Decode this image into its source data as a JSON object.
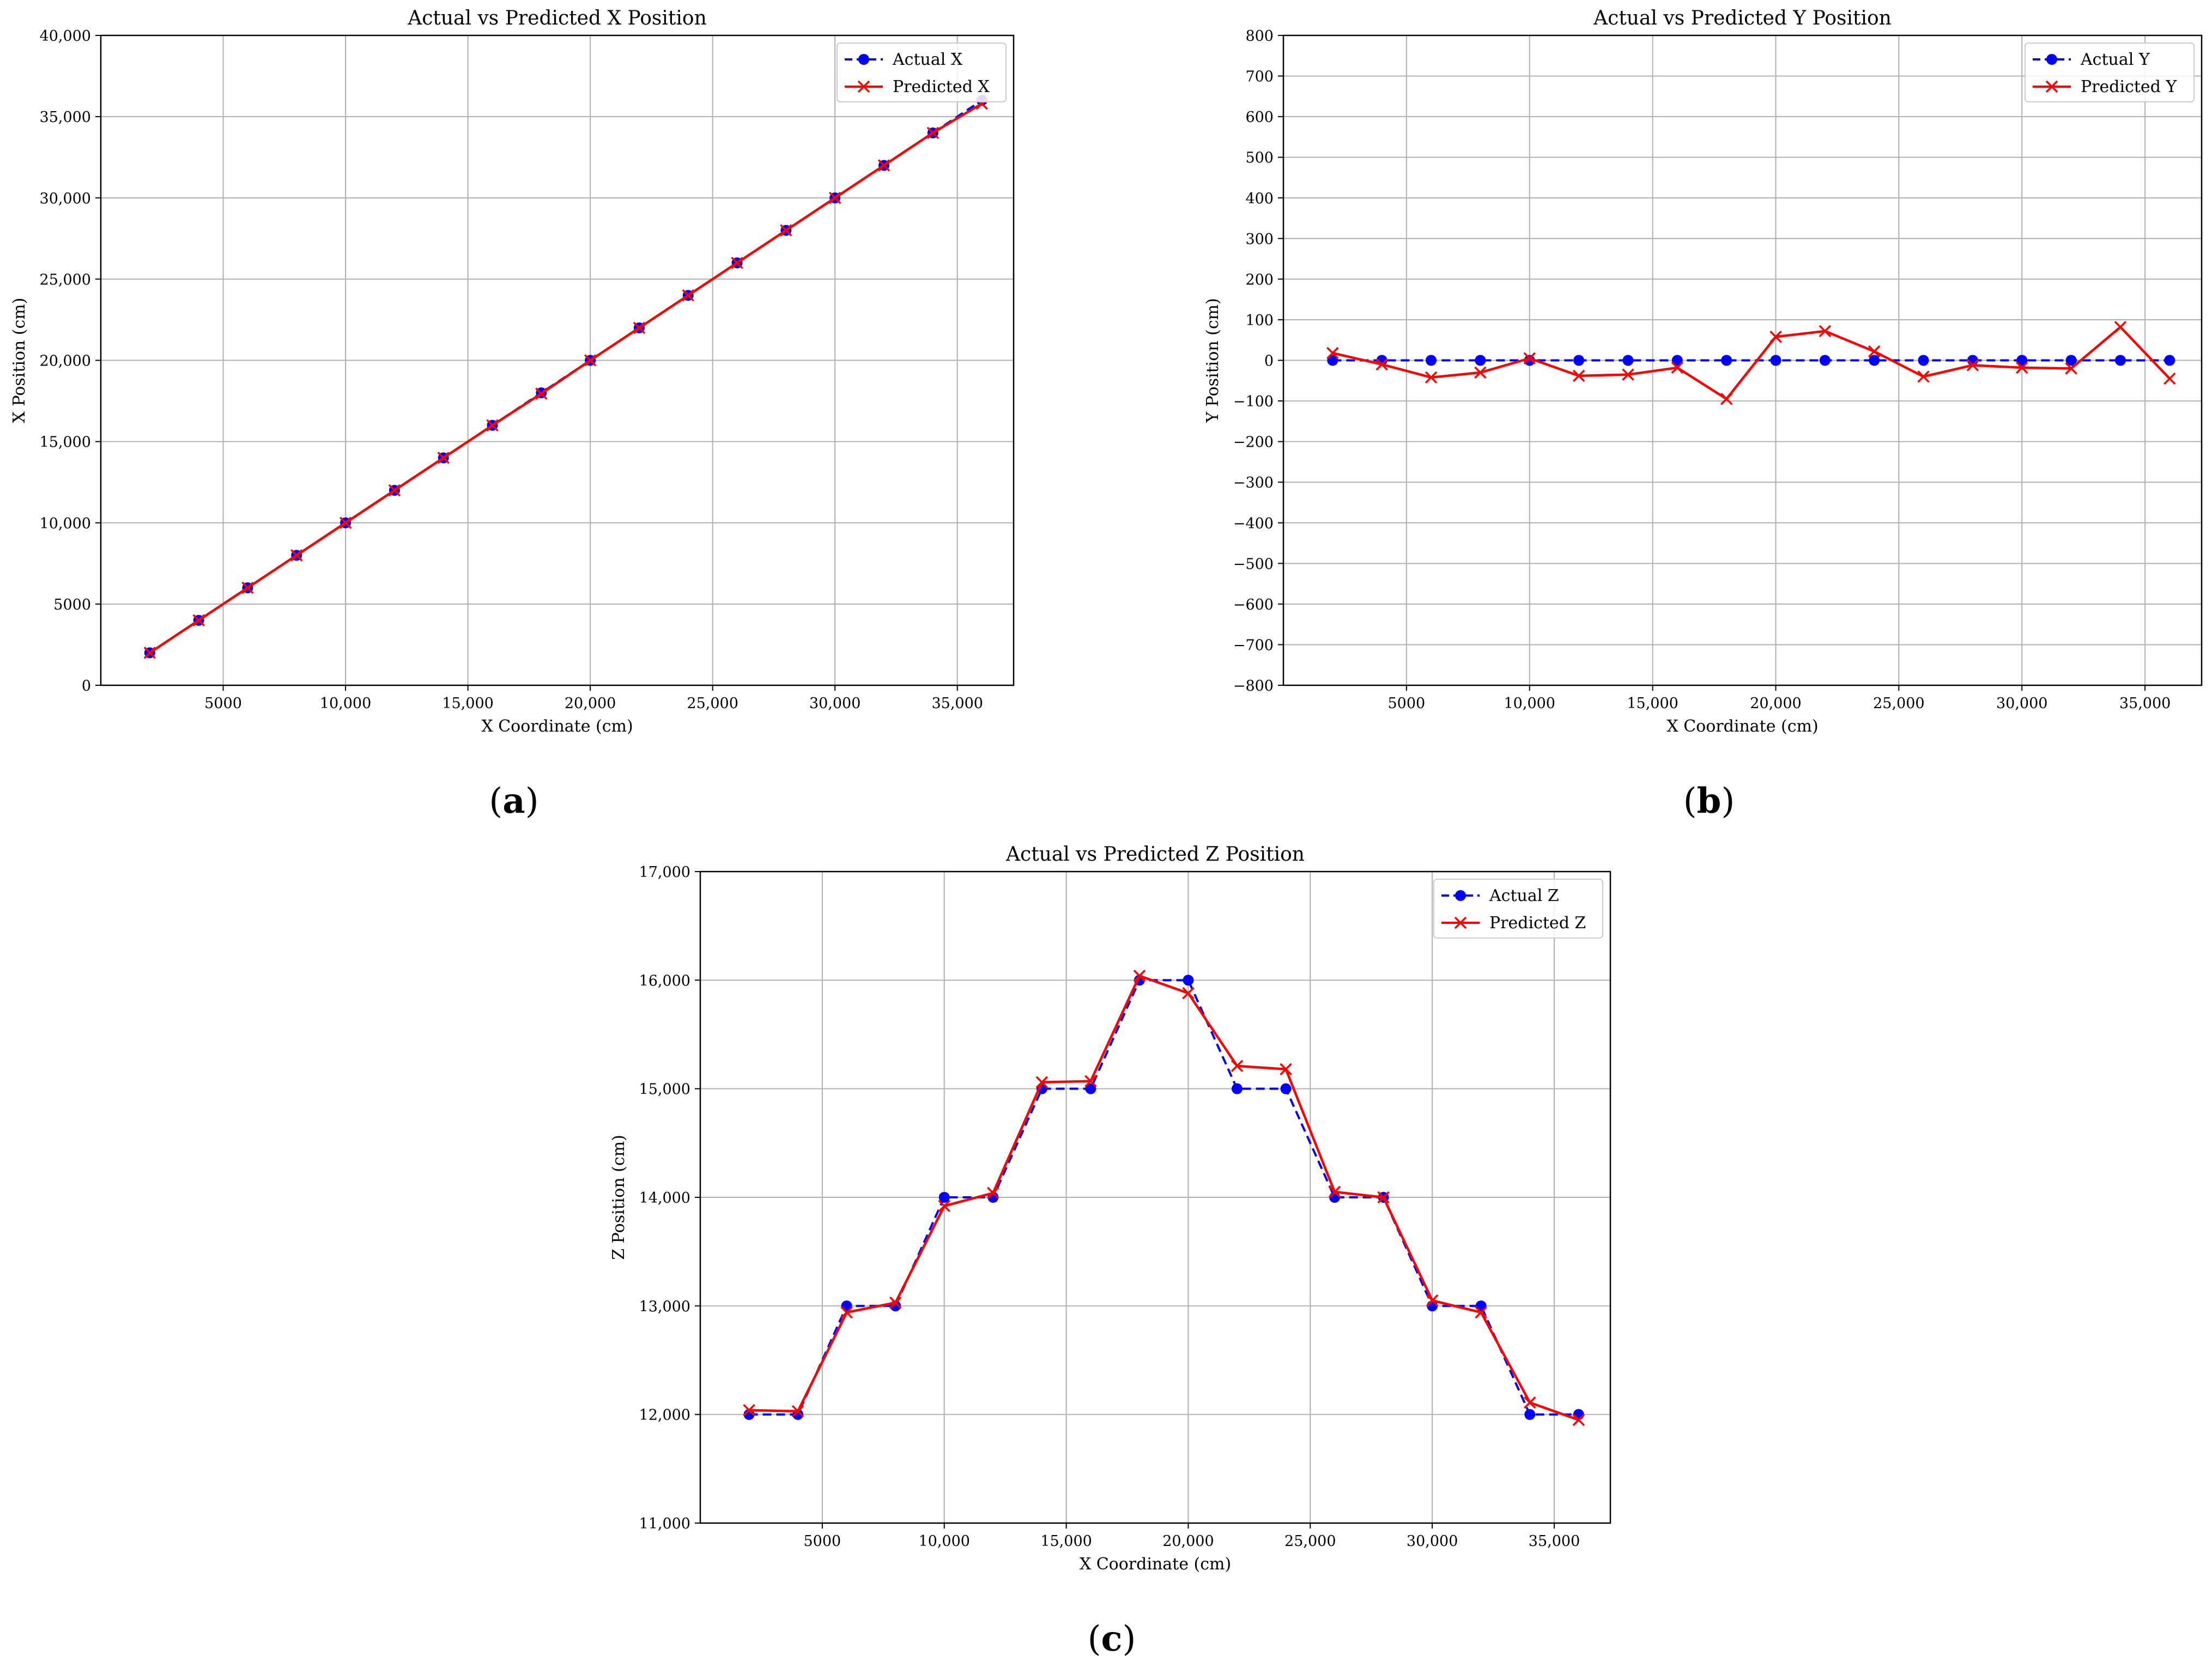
{
  "chart_data": [
    {
      "id": "a",
      "type": "line",
      "panel_label": "a",
      "title": "Actual vs Predicted X Position",
      "xlabel": "X Coordinate (cm)",
      "ylabel": "X Position (cm)",
      "xlim": [
        0,
        37300
      ],
      "ylim": [
        0,
        40000
      ],
      "xticks": [
        5000,
        10000,
        15000,
        20000,
        25000,
        30000,
        35000
      ],
      "xtick_labels": [
        "5000",
        "10,000",
        "15,000",
        "20,000",
        "25,000",
        "30,000",
        "35,000"
      ],
      "yticks": [
        0,
        5000,
        10000,
        15000,
        20000,
        25000,
        30000,
        35000,
        40000
      ],
      "ytick_labels": [
        "0",
        "5000",
        "10,000",
        "15,000",
        "20,000",
        "25,000",
        "30,000",
        "35,000",
        "40,000"
      ],
      "grid": true,
      "legend_position": "top-right",
      "x": [
        2000,
        4000,
        6000,
        8000,
        10000,
        12000,
        14000,
        16000,
        18000,
        20000,
        22000,
        24000,
        26000,
        28000,
        30000,
        32000,
        34000,
        36000
      ],
      "series": [
        {
          "name": "Actual X",
          "color": "#0000ff",
          "style": "dashed",
          "marker": "circle",
          "values": [
            2000,
            4000,
            6000,
            8000,
            10000,
            12000,
            14000,
            16000,
            18000,
            20000,
            22000,
            24000,
            26000,
            28000,
            30000,
            32000,
            34000,
            36000
          ]
        },
        {
          "name": "Predicted X",
          "color": "#ff0000",
          "style": "solid",
          "marker": "x",
          "values": [
            2000,
            4000,
            6000,
            8000,
            10000,
            12000,
            14000,
            16000,
            17950,
            20000,
            22000,
            24000,
            26000,
            28000,
            30000,
            32000,
            34000,
            35800
          ]
        }
      ]
    },
    {
      "id": "b",
      "type": "line",
      "panel_label": "b",
      "title": "Actual vs Predicted Y Position",
      "xlabel": "X Coordinate (cm)",
      "ylabel": "Y Position (cm)",
      "xlim": [
        0,
        37300
      ],
      "ylim": [
        -800,
        800
      ],
      "xticks": [
        5000,
        10000,
        15000,
        20000,
        25000,
        30000,
        35000
      ],
      "xtick_labels": [
        "5000",
        "10,000",
        "15,000",
        "20,000",
        "25,000",
        "30,000",
        "35,000"
      ],
      "yticks": [
        -800,
        -700,
        -600,
        -500,
        -400,
        -300,
        -200,
        -100,
        0,
        100,
        200,
        300,
        400,
        500,
        600,
        700,
        800
      ],
      "ytick_labels": [
        "−800",
        "−700",
        "−600",
        "−500",
        "−400",
        "−300",
        "−200",
        "−100",
        "0",
        "100",
        "200",
        "300",
        "400",
        "500",
        "600",
        "700",
        "800"
      ],
      "grid": true,
      "legend_position": "top-right",
      "x": [
        2000,
        4000,
        6000,
        8000,
        10000,
        12000,
        14000,
        16000,
        18000,
        20000,
        22000,
        24000,
        26000,
        28000,
        30000,
        32000,
        34000,
        36000
      ],
      "series": [
        {
          "name": "Actual Y",
          "color": "#0000ff",
          "style": "dashed",
          "marker": "circle",
          "values": [
            0,
            0,
            0,
            0,
            0,
            0,
            0,
            0,
            0,
            0,
            0,
            0,
            0,
            0,
            0,
            0,
            0,
            0
          ]
        },
        {
          "name": "Predicted Y",
          "color": "#ff0000",
          "style": "solid",
          "marker": "x",
          "values": [
            18,
            -10,
            -42,
            -30,
            5,
            -38,
            -35,
            -18,
            -95,
            58,
            72,
            22,
            -40,
            -12,
            -18,
            -20,
            82,
            -45
          ]
        }
      ]
    },
    {
      "id": "c",
      "type": "line",
      "panel_label": "c",
      "title": "Actual vs Predicted Z Position",
      "xlabel": "X Coordinate (cm)",
      "ylabel": "Z Position (cm)",
      "xlim": [
        0,
        37300
      ],
      "ylim": [
        11000,
        17000
      ],
      "xticks": [
        5000,
        10000,
        15000,
        20000,
        25000,
        30000,
        35000
      ],
      "xtick_labels": [
        "5000",
        "10,000",
        "15,000",
        "20,000",
        "25,000",
        "30,000",
        "35,000"
      ],
      "yticks": [
        11000,
        12000,
        13000,
        14000,
        15000,
        16000,
        17000
      ],
      "ytick_labels": [
        "11,000",
        "12,000",
        "13,000",
        "14,000",
        "15,000",
        "16,000",
        "17,000"
      ],
      "grid": true,
      "legend_position": "top-right",
      "x": [
        2000,
        4000,
        6000,
        8000,
        10000,
        12000,
        14000,
        16000,
        18000,
        20000,
        22000,
        24000,
        26000,
        28000,
        30000,
        32000,
        34000,
        36000
      ],
      "series": [
        {
          "name": "Actual Z",
          "color": "#0000ff",
          "style": "dashed",
          "marker": "circle",
          "values": [
            12000,
            12000,
            13000,
            13000,
            14000,
            14000,
            15000,
            15000,
            16000,
            16000,
            15000,
            15000,
            14000,
            14000,
            13000,
            13000,
            12000,
            12000
          ]
        },
        {
          "name": "Predicted Z",
          "color": "#ff0000",
          "style": "solid",
          "marker": "x",
          "values": [
            12040,
            12030,
            12940,
            13030,
            13920,
            14040,
            15060,
            15070,
            16040,
            15880,
            15210,
            15180,
            14050,
            14000,
            13050,
            12940,
            12110,
            11950
          ]
        }
      ]
    }
  ]
}
